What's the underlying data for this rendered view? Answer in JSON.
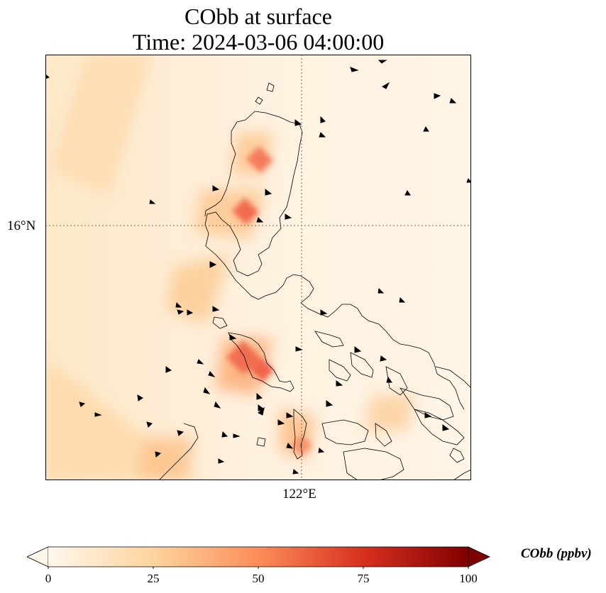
{
  "title": {
    "line1": "CObb at surface",
    "line2": "Time: 2024-03-06 04:00:00"
  },
  "axes": {
    "lat_tick": "16°N",
    "lon_tick": "122°E"
  },
  "colorbar": {
    "label": "CObb (ppbv)",
    "ticks": [
      "0",
      "25",
      "50",
      "75",
      "100"
    ],
    "min": 0,
    "max": 100,
    "colormap": "OrRd",
    "stops": [
      "#fff7ec",
      "#fdd49e",
      "#fc8d59",
      "#d7301f",
      "#7f0000"
    ]
  },
  "map_style": {
    "background_color": "#fef0dd",
    "coastline_color": "#000000",
    "gridline_style": "dotted",
    "vector_color": "#000000"
  }
}
